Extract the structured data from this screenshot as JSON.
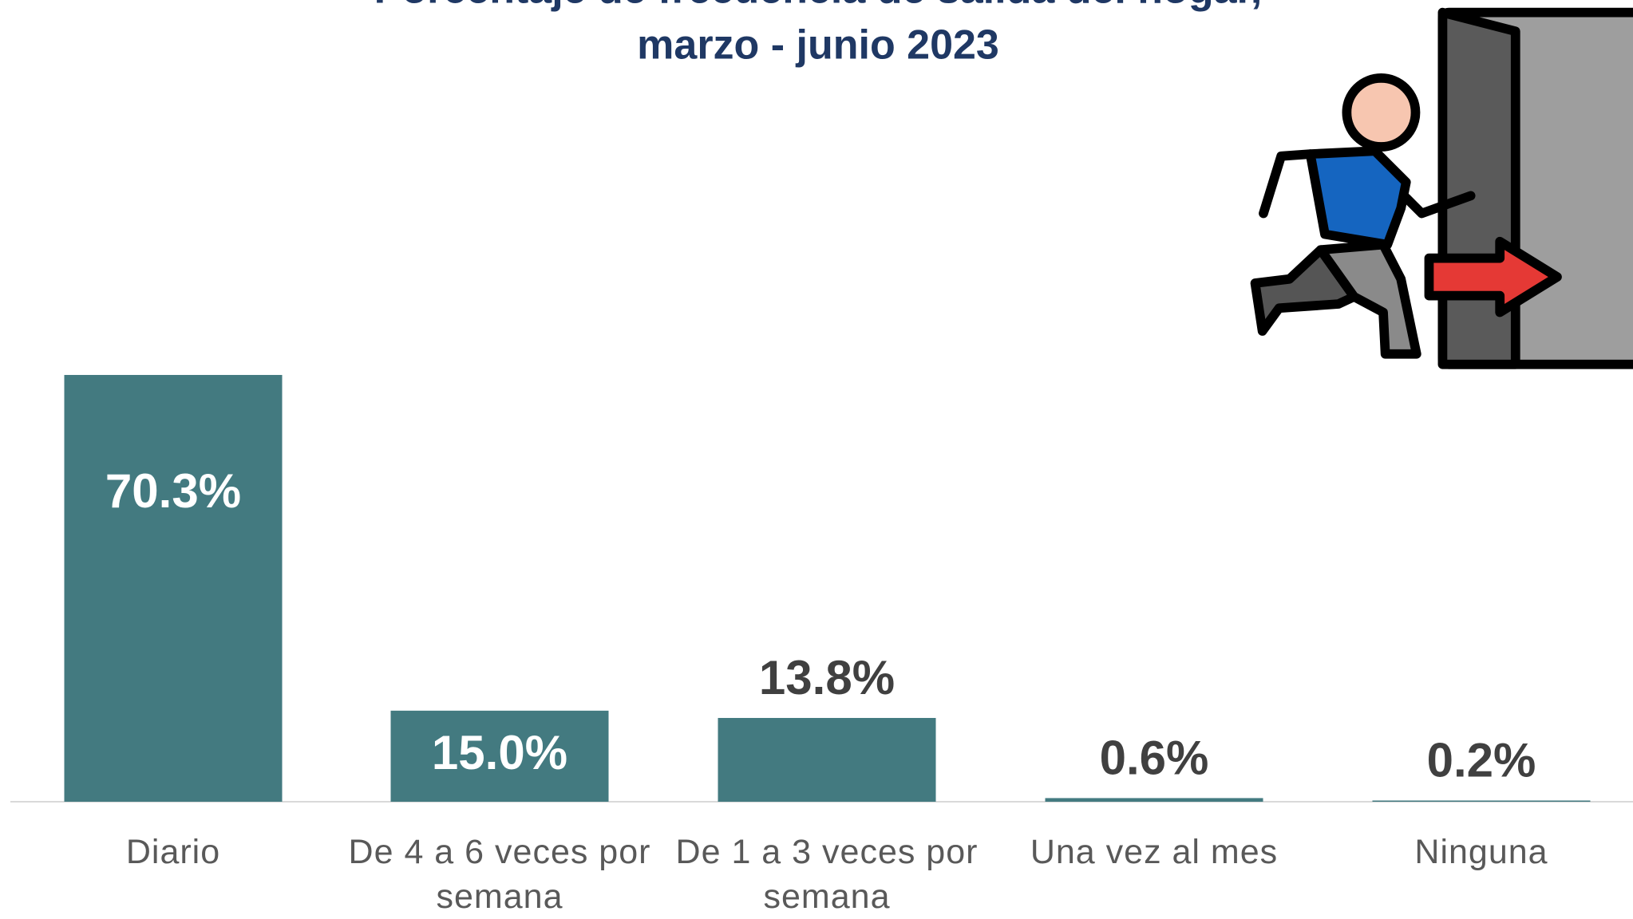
{
  "chart_data": {
    "type": "bar",
    "title": [
      "Porcentaje de frecuencia de salida del hogar,",
      "marzo - junio 2023"
    ],
    "categories": [
      "Diario",
      "De 4 a 6 veces por semana",
      "De 1 a 3 veces por semana",
      "Una vez al mes",
      "Ninguna"
    ],
    "values": [
      70.3,
      15.0,
      13.8,
      0.6,
      0.2
    ],
    "value_labels": [
      "70.3%",
      "15.0%",
      "13.8%",
      "0.6%",
      "0.2%"
    ],
    "color": "#437a80"
  }
}
